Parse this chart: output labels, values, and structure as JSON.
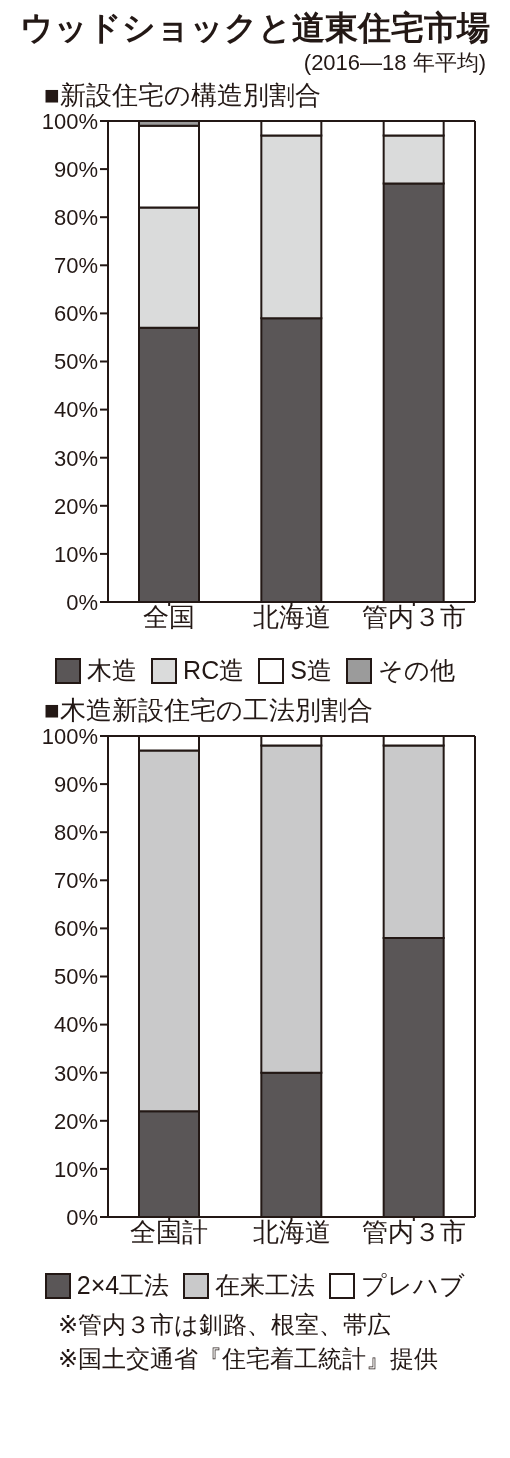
{
  "chart_data": [
    {
      "type": "bar",
      "title": "ウッドショックと道東住宅市場",
      "subtitle": "(2016—18 年平均)",
      "annotations": [
        "■新設住宅の構造別割合"
      ],
      "categories": [
        "全国",
        "北海道",
        "管内３市"
      ],
      "stacked": true,
      "legend": "bottom",
      "ylim": [
        0,
        100
      ],
      "yticks": [
        {
          "value": 0,
          "label": "0%"
        },
        {
          "value": 10,
          "label": "10%"
        },
        {
          "value": 20,
          "label": "20%"
        },
        {
          "value": 30,
          "label": "30%"
        },
        {
          "value": 40,
          "label": "40%"
        },
        {
          "value": 50,
          "label": "50%"
        },
        {
          "value": 60,
          "label": "60%"
        },
        {
          "value": 70,
          "label": "70%"
        },
        {
          "value": 80,
          "label": "80%"
        },
        {
          "value": 90,
          "label": "90%"
        },
        {
          "value": 100,
          "label": "100%"
        }
      ],
      "series": [
        {
          "name": "木造",
          "color": "#5a5657",
          "values": [
            57,
            59,
            87
          ]
        },
        {
          "name": "RC造",
          "color": "#dadbdb",
          "values": [
            25,
            38,
            10
          ]
        },
        {
          "name": "S造",
          "color": "#ffffff",
          "values": [
            17,
            3,
            3
          ]
        },
        {
          "name": "その他",
          "color": "#9b9b9b",
          "values": [
            1,
            0,
            0
          ]
        }
      ]
    },
    {
      "type": "bar",
      "title": "■木造新設住宅の工法別割合",
      "annotations": [
        "※管内３市は釧路、根室、帯広",
        "※国土交通省『住宅着工統計』提供"
      ],
      "categories": [
        "全国計",
        "北海道",
        "管内３市"
      ],
      "stacked": true,
      "legend": "bottom",
      "ylim": [
        0,
        100
      ],
      "yticks": [
        {
          "value": 0,
          "label": "0%"
        },
        {
          "value": 10,
          "label": "10%"
        },
        {
          "value": 20,
          "label": "20%"
        },
        {
          "value": 30,
          "label": "30%"
        },
        {
          "value": 40,
          "label": "40%"
        },
        {
          "value": 50,
          "label": "50%"
        },
        {
          "value": 60,
          "label": "60%"
        },
        {
          "value": 70,
          "label": "70%"
        },
        {
          "value": 80,
          "label": "80%"
        },
        {
          "value": 90,
          "label": "90%"
        },
        {
          "value": 100,
          "label": "100%"
        }
      ],
      "series": [
        {
          "name": "2×4工法",
          "color": "#5a5657",
          "values": [
            22,
            30,
            58
          ]
        },
        {
          "name": "在来工法",
          "color": "#c9c9ca",
          "values": [
            75,
            68,
            40
          ]
        },
        {
          "name": "プレハブ",
          "color": "#ffffff",
          "values": [
            3,
            2,
            2
          ]
        }
      ]
    }
  ]
}
